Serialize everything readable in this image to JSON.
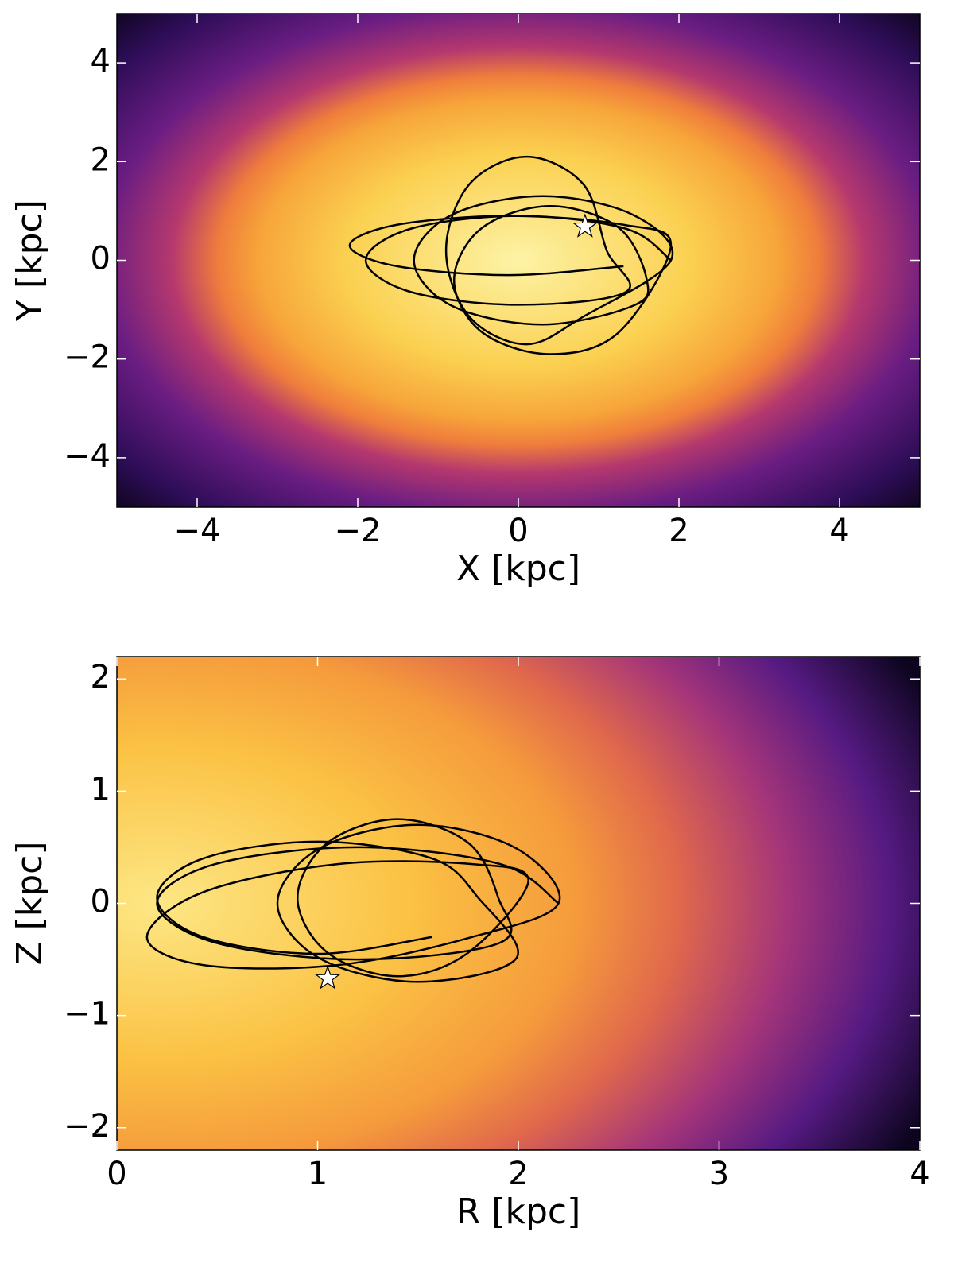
{
  "chart_data": [
    {
      "type": "orbit",
      "x_label": "X [kpc]",
      "y_label": "Y [kpc]",
      "xlim": [
        -5,
        5
      ],
      "ylim": [
        -5,
        5
      ],
      "xticks": [
        {
          "value": -4,
          "label": "−4"
        },
        {
          "value": -2,
          "label": "−2"
        },
        0,
        2,
        4
      ],
      "yticks": [
        {
          "value": -4,
          "label": "−4"
        },
        {
          "value": -2,
          "label": "−2"
        },
        0,
        2,
        4
      ],
      "orbit": {
        "color": "#000000",
        "x": [
          1.9,
          1.34,
          0,
          -1.34,
          -1.9,
          -1.34,
          0,
          1.34,
          1.1,
          0.81,
          0.1,
          -0.61,
          -0.9,
          -0.61,
          0.1,
          0.81,
          1.9,
          1.43,
          0.3,
          -0.83,
          -1.3,
          -0.83,
          0.3,
          1.43,
          1.6,
          1.25,
          0.4,
          -0.45,
          -0.8,
          -0.45,
          0.4,
          1.25,
          1.9,
          1.31,
          -0.1,
          -1.51,
          -2.1,
          -1.51,
          -0.1,
          1.31
        ],
        "y": [
          0,
          0.64,
          0.9,
          0.64,
          0,
          -0.64,
          -0.9,
          -0.64,
          0.2,
          1.54,
          2.1,
          1.54,
          0.2,
          -1.14,
          -1.7,
          -1.14,
          0,
          0.92,
          1.3,
          0.92,
          0,
          -0.92,
          -1.3,
          -0.92,
          -0.4,
          0.66,
          1.1,
          0.66,
          -0.4,
          -1.46,
          -1.9,
          -1.46,
          0.3,
          0.72,
          0.9,
          0.72,
          0.3,
          -0.12,
          -0.3,
          -0.12
        ]
      },
      "marker": {
        "x": 0.83,
        "y": 0.68,
        "color": "#ffffff"
      }
    },
    {
      "type": "orbit",
      "x_label": "R [kpc]",
      "y_label": "Z [kpc]",
      "xlim": [
        0,
        4
      ],
      "ylim": [
        -2.2,
        2.2
      ],
      "xticks": [
        0,
        1,
        2,
        3,
        4
      ],
      "yticks": [
        {
          "value": -2,
          "label": "−2"
        },
        {
          "value": -1,
          "label": "−1"
        },
        0,
        1,
        2
      ],
      "orbit": {
        "color": "#000000",
        "x": [
          2.2,
          1.91,
          1.2,
          0.49,
          0.2,
          0.49,
          1.2,
          1.91,
          1.9,
          1.75,
          1.4,
          1.05,
          0.9,
          1.05,
          1.4,
          1.75,
          2.05,
          1.77,
          1.1,
          0.43,
          0.15,
          0.43,
          1.1,
          1.77,
          2.2,
          1.99,
          1.5,
          1.01,
          0.8,
          1.01,
          1.5,
          1.99,
          1.8,
          1.57,
          1.0,
          0.43,
          0.2,
          0.43,
          1.0,
          1.57
        ],
        "y": [
          0,
          0.35,
          0.5,
          0.35,
          0,
          -0.35,
          -0.5,
          -0.35,
          0.05,
          0.54,
          0.75,
          0.54,
          0.05,
          -0.44,
          -0.65,
          -0.44,
          0.2,
          0.35,
          0.35,
          0.1,
          -0.3,
          -0.55,
          -0.55,
          -0.3,
          0,
          0.49,
          0.7,
          0.49,
          0,
          -0.49,
          -0.7,
          -0.49,
          0.05,
          0.4,
          0.55,
          0.4,
          0.05,
          -0.3,
          -0.45,
          -0.3
        ]
      },
      "marker": {
        "x": 1.05,
        "y": -0.67,
        "color": "#ffffff"
      }
    }
  ]
}
